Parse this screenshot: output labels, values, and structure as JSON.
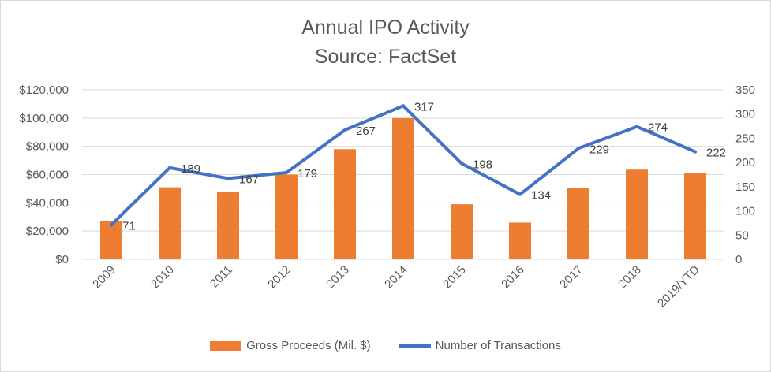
{
  "chart_data": {
    "type": "bar",
    "title": "Annual IPO Activity",
    "subtitle": "Source: FactSet",
    "categories": [
      "2009",
      "2010",
      "2011",
      "2012",
      "2013",
      "2014",
      "2015",
      "2016",
      "2017",
      "2018",
      "2019/YTD"
    ],
    "series": [
      {
        "name": "Gross Proceeds (Mil. $)",
        "type": "bar",
        "axis": "left",
        "color": "#ed7d31",
        "values": [
          27000,
          51000,
          48000,
          60000,
          78000,
          100000,
          39000,
          26000,
          50500,
          63500,
          61000
        ]
      },
      {
        "name": "Number of Transactions",
        "type": "line",
        "axis": "right",
        "color": "#4472c4",
        "values": [
          71,
          189,
          167,
          179,
          267,
          317,
          198,
          134,
          229,
          274,
          222
        ],
        "data_labels": [
          "71",
          "189",
          "167",
          "179",
          "267",
          "317",
          "198",
          "134",
          "229",
          "274",
          "222"
        ]
      }
    ],
    "y_left": {
      "ylim": [
        0,
        120000
      ],
      "ticks": [
        0,
        20000,
        40000,
        60000,
        80000,
        100000,
        120000
      ],
      "tick_labels": [
        "$0",
        "$20,000",
        "$40,000",
        "$60,000",
        "$80,000",
        "$100,000",
        "$120,000"
      ]
    },
    "y_right": {
      "ylim": [
        0,
        350
      ],
      "ticks": [
        0,
        50,
        100,
        150,
        200,
        250,
        300,
        350
      ],
      "tick_labels": [
        "0",
        "50",
        "100",
        "150",
        "200",
        "250",
        "300",
        "350"
      ]
    },
    "grid": true,
    "legend_position": "bottom"
  }
}
